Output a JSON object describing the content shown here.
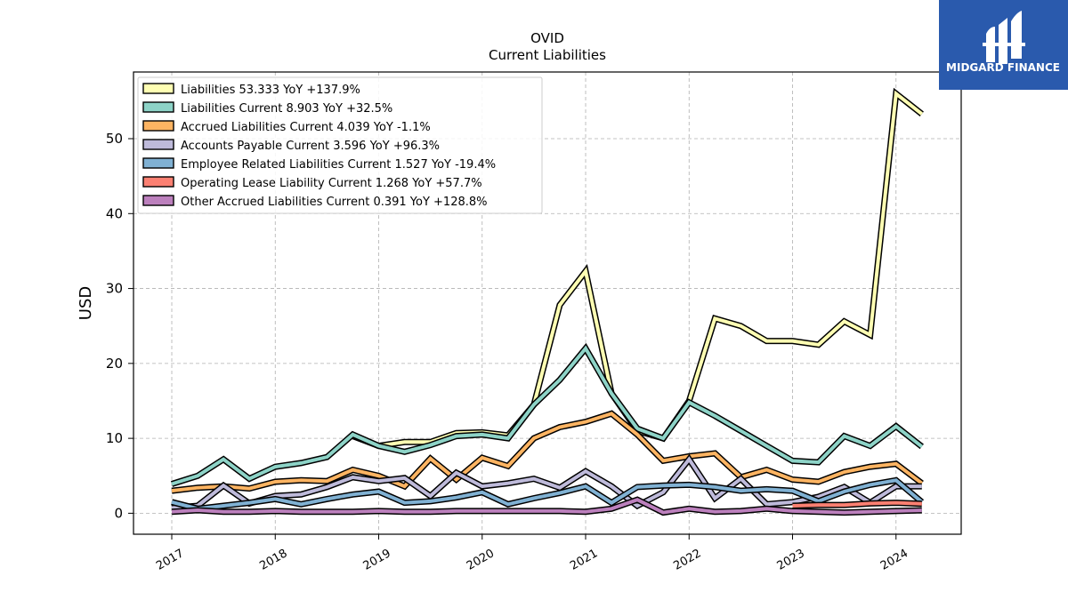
{
  "branding": {
    "logo_text": "MIDGARD FINANCE",
    "logo_bg": "#2a5aad"
  },
  "chart_data": {
    "type": "line",
    "title": "OVID",
    "subtitle": "Current  Liabilities",
    "ylabel": "USD",
    "xlabel": "",
    "xlim": [
      2016.63,
      2024.63
    ],
    "ylim": [
      -2.8,
      58.9
    ],
    "x_ticks": [
      2017,
      2018,
      2019,
      2020,
      2021,
      2022,
      2023,
      2024
    ],
    "x_tick_labels": [
      "2017",
      "2018",
      "2019",
      "2020",
      "2021",
      "2022",
      "2023",
      "2024"
    ],
    "y_ticks": [
      0,
      10,
      20,
      30,
      40,
      50
    ],
    "y_tick_labels": [
      "0",
      "10",
      "20",
      "30",
      "40",
      "50"
    ],
    "grid": true,
    "legend_position": "upper-left",
    "series": [
      {
        "name": "Liabilities  53.333 YoY +137.9%",
        "color": "#ffffb3",
        "points": [
          [
            2018.75,
            10.3
          ],
          [
            2019.0,
            9.0
          ],
          [
            2019.25,
            9.5
          ],
          [
            2019.5,
            9.5
          ],
          [
            2019.75,
            10.7
          ],
          [
            2020.0,
            10.8
          ],
          [
            2020.25,
            10.4
          ],
          [
            2020.5,
            14.5
          ],
          [
            2020.75,
            27.8
          ],
          [
            2021.0,
            32.3
          ],
          [
            2021.25,
            16.0
          ],
          [
            2021.5,
            11.0
          ],
          [
            2021.75,
            10.0
          ],
          [
            2022.0,
            15.0
          ],
          [
            2022.25,
            26.0
          ],
          [
            2022.5,
            25.0
          ],
          [
            2022.75,
            23.0
          ],
          [
            2023.0,
            23.0
          ],
          [
            2023.25,
            22.5
          ],
          [
            2023.5,
            25.6
          ],
          [
            2023.75,
            23.8
          ],
          [
            2024.0,
            56.0
          ],
          [
            2024.25,
            53.3
          ]
        ]
      },
      {
        "name": "Liabilities Current  8.903 YoY +32.5%",
        "color": "#8dd3c7",
        "points": [
          [
            2017.0,
            3.9
          ],
          [
            2017.25,
            5.0
          ],
          [
            2017.5,
            7.2
          ],
          [
            2017.75,
            4.6
          ],
          [
            2018.0,
            6.2
          ],
          [
            2018.25,
            6.7
          ],
          [
            2018.5,
            7.5
          ],
          [
            2018.75,
            10.5
          ],
          [
            2019.0,
            9.0
          ],
          [
            2019.25,
            8.2
          ],
          [
            2019.5,
            9.1
          ],
          [
            2019.75,
            10.3
          ],
          [
            2020.0,
            10.5
          ],
          [
            2020.25,
            10.0
          ],
          [
            2020.5,
            14.5
          ],
          [
            2020.75,
            17.8
          ],
          [
            2021.0,
            22.0
          ],
          [
            2021.25,
            16.0
          ],
          [
            2021.5,
            11.3
          ],
          [
            2021.75,
            10.0
          ],
          [
            2022.0,
            14.8
          ],
          [
            2022.25,
            13.0
          ],
          [
            2022.5,
            11.0
          ],
          [
            2022.75,
            9.0
          ],
          [
            2023.0,
            7.0
          ],
          [
            2023.25,
            6.8
          ],
          [
            2023.5,
            10.3
          ],
          [
            2023.75,
            9.0
          ],
          [
            2024.0,
            11.6
          ],
          [
            2024.25,
            8.9
          ]
        ]
      },
      {
        "name": "Accrued Liabilities Current  4.039 YoY -1.1%",
        "color": "#fdb462",
        "points": [
          [
            2017.0,
            3.0
          ],
          [
            2017.25,
            3.4
          ],
          [
            2017.5,
            3.6
          ],
          [
            2017.75,
            3.3
          ],
          [
            2018.0,
            4.2
          ],
          [
            2018.25,
            4.4
          ],
          [
            2018.5,
            4.3
          ],
          [
            2018.75,
            5.8
          ],
          [
            2019.0,
            5.0
          ],
          [
            2019.25,
            3.6
          ],
          [
            2019.5,
            7.3
          ],
          [
            2019.75,
            4.5
          ],
          [
            2020.0,
            7.4
          ],
          [
            2020.25,
            6.3
          ],
          [
            2020.5,
            10.0
          ],
          [
            2020.75,
            11.5
          ],
          [
            2021.0,
            12.2
          ],
          [
            2021.25,
            13.3
          ],
          [
            2021.5,
            10.5
          ],
          [
            2021.75,
            7.0
          ],
          [
            2022.0,
            7.6
          ],
          [
            2022.25,
            8.0
          ],
          [
            2022.5,
            4.8
          ],
          [
            2022.75,
            5.8
          ],
          [
            2023.0,
            4.5
          ],
          [
            2023.25,
            4.2
          ],
          [
            2023.5,
            5.5
          ],
          [
            2023.75,
            6.2
          ],
          [
            2024.0,
            6.6
          ],
          [
            2024.25,
            4.0
          ]
        ]
      },
      {
        "name": "Accounts Payable Current  3.596 YoY +96.3%",
        "color": "#bebada",
        "points": [
          [
            2017.0,
            0.7
          ],
          [
            2017.25,
            1.0
          ],
          [
            2017.5,
            3.7
          ],
          [
            2017.75,
            1.3
          ],
          [
            2018.0,
            2.3
          ],
          [
            2018.25,
            2.5
          ],
          [
            2018.5,
            3.5
          ],
          [
            2018.75,
            4.8
          ],
          [
            2019.0,
            4.3
          ],
          [
            2019.25,
            4.7
          ],
          [
            2019.5,
            2.3
          ],
          [
            2019.75,
            5.4
          ],
          [
            2020.0,
            3.6
          ],
          [
            2020.25,
            4.0
          ],
          [
            2020.5,
            4.6
          ],
          [
            2020.75,
            3.4
          ],
          [
            2021.0,
            5.6
          ],
          [
            2021.25,
            3.6
          ],
          [
            2021.5,
            1.0
          ],
          [
            2021.75,
            2.8
          ],
          [
            2022.0,
            7.2
          ],
          [
            2022.25,
            2.0
          ],
          [
            2022.5,
            4.6
          ],
          [
            2022.75,
            1.2
          ],
          [
            2023.0,
            1.5
          ],
          [
            2023.25,
            2.2
          ],
          [
            2023.5,
            3.5
          ],
          [
            2023.75,
            1.4
          ],
          [
            2024.0,
            3.6
          ],
          [
            2024.25,
            3.6
          ]
        ]
      },
      {
        "name": "Employee Related Liabilities Current  1.527 YoY -19.4%",
        "color": "#80b1d3",
        "points": [
          [
            2017.0,
            1.5
          ],
          [
            2017.25,
            0.6
          ],
          [
            2017.5,
            1.0
          ],
          [
            2017.75,
            1.4
          ],
          [
            2018.0,
            1.9
          ],
          [
            2018.25,
            1.2
          ],
          [
            2018.5,
            1.9
          ],
          [
            2018.75,
            2.5
          ],
          [
            2019.0,
            2.9
          ],
          [
            2019.25,
            1.4
          ],
          [
            2019.5,
            1.6
          ],
          [
            2019.75,
            2.1
          ],
          [
            2020.0,
            2.8
          ],
          [
            2020.25,
            1.2
          ],
          [
            2020.5,
            2.0
          ],
          [
            2020.75,
            2.7
          ],
          [
            2021.0,
            3.6
          ],
          [
            2021.25,
            1.4
          ],
          [
            2021.5,
            3.5
          ],
          [
            2021.75,
            3.7
          ],
          [
            2022.0,
            3.8
          ],
          [
            2022.25,
            3.5
          ],
          [
            2022.5,
            3.0
          ],
          [
            2022.75,
            3.2
          ],
          [
            2023.0,
            3.0
          ],
          [
            2023.25,
            1.6
          ],
          [
            2023.5,
            2.9
          ],
          [
            2023.75,
            3.8
          ],
          [
            2024.0,
            4.4
          ],
          [
            2024.25,
            1.5
          ]
        ]
      },
      {
        "name": "Operating Lease Liability Current  1.268 YoY +57.7%",
        "color": "#fb8072",
        "points": [
          [
            2023.0,
            1.0
          ],
          [
            2023.25,
            1.1
          ],
          [
            2023.5,
            1.1
          ],
          [
            2023.75,
            1.3
          ],
          [
            2024.0,
            1.4
          ],
          [
            2024.25,
            1.27
          ]
        ]
      },
      {
        "name": "Other Accrued Liabilities Current  0.391 YoY +128.8%",
        "color": "#bc80bd",
        "points": [
          [
            2017.0,
            0.2
          ],
          [
            2017.25,
            0.4
          ],
          [
            2017.5,
            0.2
          ],
          [
            2017.75,
            0.2
          ],
          [
            2018.0,
            0.3
          ],
          [
            2018.25,
            0.2
          ],
          [
            2018.5,
            0.2
          ],
          [
            2018.75,
            0.2
          ],
          [
            2019.0,
            0.3
          ],
          [
            2019.25,
            0.2
          ],
          [
            2019.5,
            0.2
          ],
          [
            2019.75,
            0.3
          ],
          [
            2020.0,
            0.3
          ],
          [
            2020.25,
            0.3
          ],
          [
            2020.5,
            0.3
          ],
          [
            2020.75,
            0.3
          ],
          [
            2021.0,
            0.2
          ],
          [
            2021.25,
            0.6
          ],
          [
            2021.5,
            1.8
          ],
          [
            2021.75,
            0.1
          ],
          [
            2022.0,
            0.6
          ],
          [
            2022.25,
            0.2
          ],
          [
            2022.5,
            0.3
          ],
          [
            2022.75,
            0.6
          ],
          [
            2023.0,
            0.3
          ],
          [
            2023.25,
            0.2
          ],
          [
            2023.5,
            0.1
          ],
          [
            2023.75,
            0.2
          ],
          [
            2024.0,
            0.3
          ],
          [
            2024.25,
            0.39
          ]
        ]
      }
    ]
  }
}
